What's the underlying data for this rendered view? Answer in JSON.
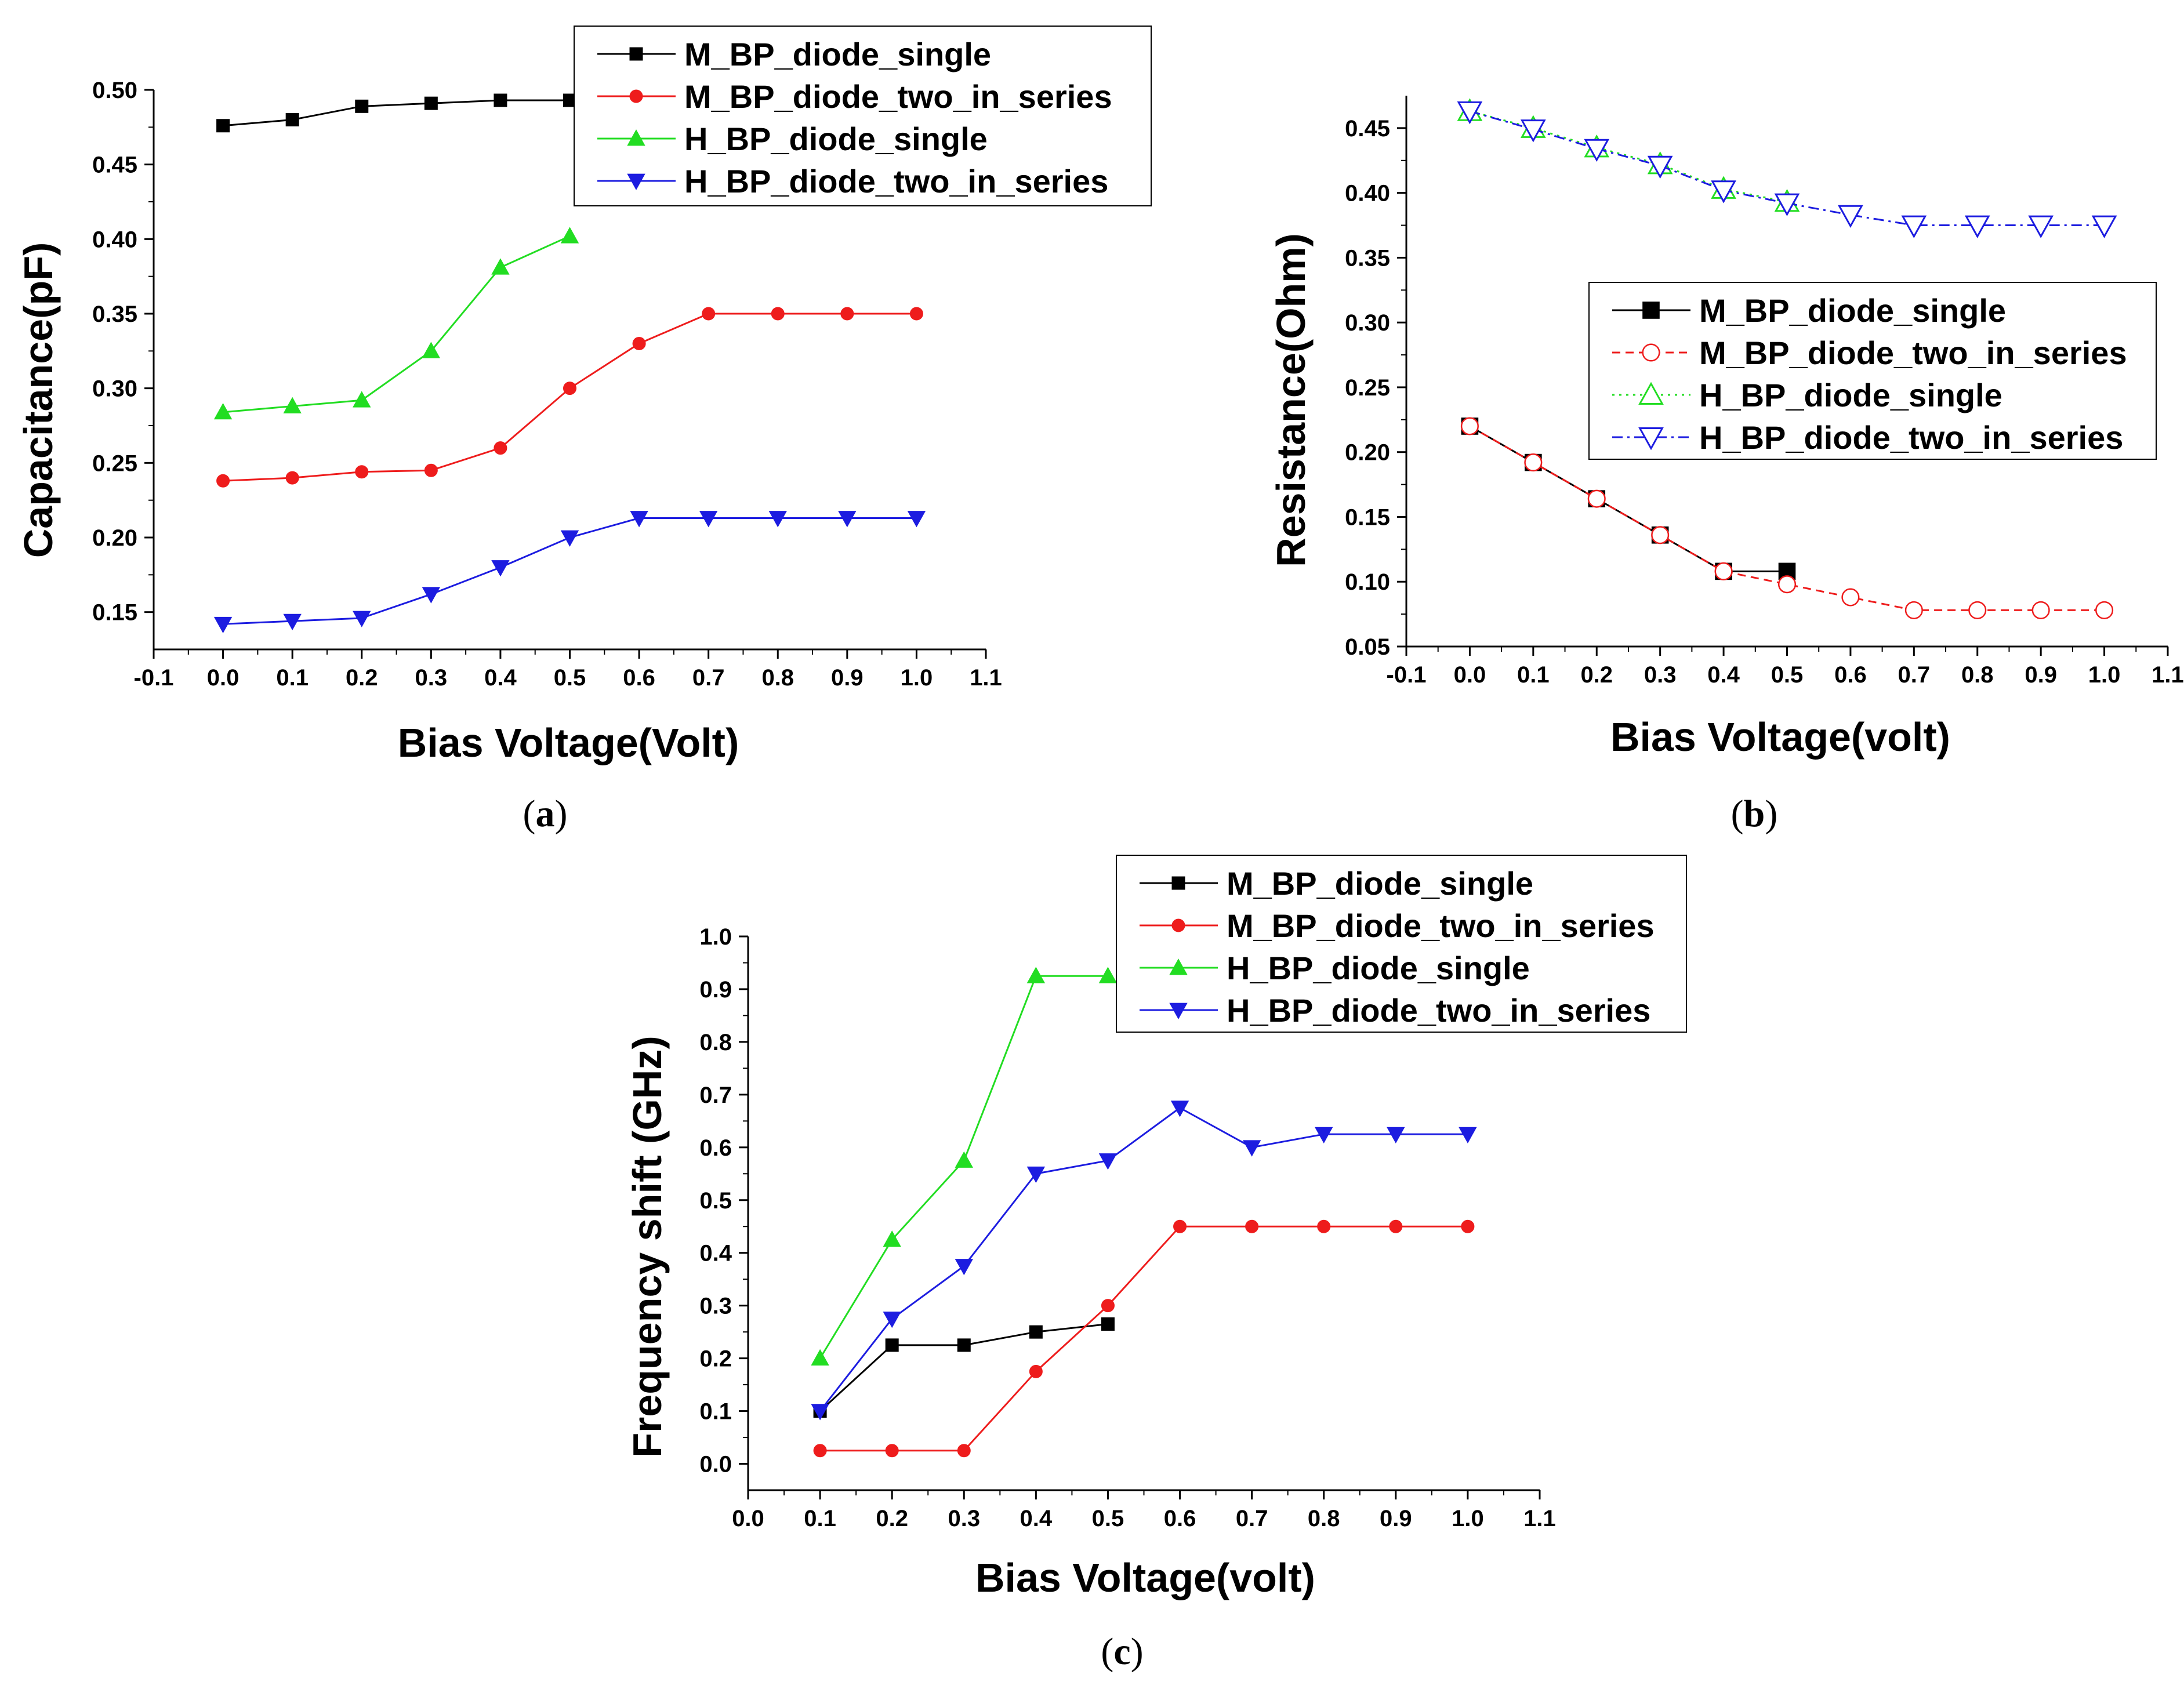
{
  "chart_data": [
    {
      "id": "a",
      "type": "line",
      "panel_label": "(a)",
      "panel_letter": "a",
      "xlabel": "Bias Voltage(Volt)",
      "ylabel": "Capacitance(pF)",
      "xlim": [
        -0.1,
        1.1
      ],
      "ylim": [
        0.125,
        0.5
      ],
      "xticks": [
        -0.1,
        0.0,
        0.1,
        0.2,
        0.3,
        0.4,
        0.5,
        0.6,
        0.7,
        0.8,
        0.9,
        1.0,
        1.1
      ],
      "xtick_labels": [
        "-0.1",
        "0.0",
        "0.1",
        "0.2",
        "0.3",
        "0.4",
        "0.5",
        "0.6",
        "0.7",
        "0.8",
        "0.9",
        "1.0",
        "1.1"
      ],
      "yticks": [
        0.15,
        0.2,
        0.25,
        0.3,
        0.35,
        0.4,
        0.45,
        0.5
      ],
      "ytick_labels": [
        "0.15",
        "0.20",
        "0.25",
        "0.30",
        "0.35",
        "0.40",
        "0.45",
        "0.50"
      ],
      "legend_position": "top-right",
      "series": [
        {
          "name": "M_BP_diode_single",
          "color": "#000000",
          "marker": "square",
          "dash": "solid",
          "x": [
            0.0,
            0.1,
            0.2,
            0.3,
            0.4,
            0.5
          ],
          "y": [
            0.476,
            0.48,
            0.489,
            0.491,
            0.493,
            0.493
          ]
        },
        {
          "name": "M_BP_diode_two_in_series",
          "color": "#ee1c1c",
          "marker": "circle",
          "dash": "solid",
          "x": [
            0.0,
            0.1,
            0.2,
            0.3,
            0.4,
            0.5,
            0.6,
            0.7,
            0.8,
            0.9,
            1.0
          ],
          "y": [
            0.238,
            0.24,
            0.244,
            0.245,
            0.26,
            0.3,
            0.33,
            0.35,
            0.35,
            0.35,
            0.35
          ]
        },
        {
          "name": "H_BP_diode_single",
          "color": "#22dd22",
          "marker": "triangle-up",
          "dash": "solid",
          "x": [
            0.0,
            0.1,
            0.2,
            0.3,
            0.4,
            0.5
          ],
          "y": [
            0.284,
            0.288,
            0.292,
            0.325,
            0.381,
            0.402
          ]
        },
        {
          "name": "H_BP_diode_two_in_series",
          "color": "#1c1ce0",
          "marker": "triangle-down",
          "dash": "solid",
          "x": [
            0.0,
            0.1,
            0.2,
            0.3,
            0.4,
            0.5,
            0.6,
            0.7,
            0.8,
            0.9,
            1.0
          ],
          "y": [
            0.142,
            0.144,
            0.146,
            0.162,
            0.18,
            0.2,
            0.213,
            0.213,
            0.213,
            0.213,
            0.213
          ]
        }
      ]
    },
    {
      "id": "b",
      "type": "line",
      "panel_label": "(b)",
      "panel_letter": "b",
      "xlabel": "Bias Voltage(volt)",
      "ylabel": "Resistance(Ohm)",
      "xlim": [
        -0.1,
        1.1
      ],
      "ylim": [
        0.05,
        0.475
      ],
      "xticks": [
        -0.1,
        0.0,
        0.1,
        0.2,
        0.3,
        0.4,
        0.5,
        0.6,
        0.7,
        0.8,
        0.9,
        1.0,
        1.1
      ],
      "xtick_labels": [
        "-0.1",
        "0.0",
        "0.1",
        "0.2",
        "0.3",
        "0.4",
        "0.5",
        "0.6",
        "0.7",
        "0.8",
        "0.9",
        "1.0",
        "1.1"
      ],
      "yticks": [
        0.05,
        0.1,
        0.15,
        0.2,
        0.25,
        0.3,
        0.35,
        0.4,
        0.45
      ],
      "ytick_labels": [
        "0.05",
        "0.10",
        "0.15",
        "0.20",
        "0.25",
        "0.30",
        "0.35",
        "0.40",
        "0.45"
      ],
      "legend_position": "center-right",
      "series": [
        {
          "name": "M_BP_diode_single",
          "color": "#000000",
          "marker": "square",
          "dash": "solid",
          "x": [
            0.0,
            0.1,
            0.2,
            0.3,
            0.4,
            0.5
          ],
          "y": [
            0.22,
            0.192,
            0.164,
            0.136,
            0.108,
            0.108
          ]
        },
        {
          "name": "M_BP_diode_two_in_series",
          "color": "#ee1c1c",
          "marker": "circle-open",
          "dash": "dashed",
          "x": [
            0.0,
            0.1,
            0.2,
            0.3,
            0.4,
            0.5,
            0.6,
            0.7,
            0.8,
            0.9,
            1.0
          ],
          "y": [
            0.22,
            0.192,
            0.164,
            0.136,
            0.108,
            0.098,
            0.088,
            0.078,
            0.078,
            0.078,
            0.078
          ]
        },
        {
          "name": "H_BP_diode_single",
          "color": "#22dd22",
          "marker": "triangle-up-open",
          "dash": "dotted",
          "x": [
            0.0,
            0.1,
            0.2,
            0.3,
            0.4,
            0.5
          ],
          "y": [
            0.463,
            0.45,
            0.435,
            0.422,
            0.403,
            0.393
          ]
        },
        {
          "name": "H_BP_diode_two_in_series",
          "color": "#1c1ce0",
          "marker": "triangle-down-open",
          "dash": "dashdot",
          "x": [
            0.0,
            0.1,
            0.2,
            0.3,
            0.4,
            0.5,
            0.6,
            0.7,
            0.8,
            0.9,
            1.0
          ],
          "y": [
            0.463,
            0.449,
            0.434,
            0.421,
            0.402,
            0.392,
            0.383,
            0.375,
            0.375,
            0.375,
            0.375
          ]
        }
      ]
    },
    {
      "id": "c",
      "type": "line",
      "panel_label": "(c)",
      "panel_letter": "c",
      "xlabel": "Bias Voltage(volt)",
      "ylabel": "Frequency shift (GHz)",
      "xlim": [
        0.0,
        1.1
      ],
      "ylim": [
        -0.05,
        1.0
      ],
      "xticks": [
        0.0,
        0.1,
        0.2,
        0.3,
        0.4,
        0.5,
        0.6,
        0.7,
        0.8,
        0.9,
        1.0,
        1.1
      ],
      "xtick_labels": [
        "0.0",
        "0.1",
        "0.2",
        "0.3",
        "0.4",
        "0.5",
        "0.6",
        "0.7",
        "0.8",
        "0.9",
        "1.0",
        "1.1"
      ],
      "yticks": [
        0.0,
        0.1,
        0.2,
        0.3,
        0.4,
        0.5,
        0.6,
        0.7,
        0.8,
        0.9,
        1.0
      ],
      "ytick_labels": [
        "0.0",
        "0.1",
        "0.2",
        "0.3",
        "0.4",
        "0.5",
        "0.6",
        "0.7",
        "0.8",
        "0.9",
        "1.0"
      ],
      "legend_position": "top-right",
      "series": [
        {
          "name": "M_BP_diode_single",
          "color": "#000000",
          "marker": "square",
          "dash": "solid",
          "x": [
            0.1,
            0.2,
            0.3,
            0.4,
            0.5
          ],
          "y": [
            0.1,
            0.225,
            0.225,
            0.25,
            0.265
          ]
        },
        {
          "name": "M_BP_diode_two_in_series",
          "color": "#ee1c1c",
          "marker": "circle",
          "dash": "solid",
          "x": [
            0.1,
            0.2,
            0.3,
            0.4,
            0.5,
            0.6,
            0.7,
            0.8,
            0.9,
            1.0
          ],
          "y": [
            0.025,
            0.025,
            0.025,
            0.175,
            0.3,
            0.45,
            0.45,
            0.45,
            0.45,
            0.45
          ]
        },
        {
          "name": "H_BP_diode_single",
          "color": "#22dd22",
          "marker": "triangle-up",
          "dash": "solid",
          "x": [
            0.1,
            0.2,
            0.3,
            0.4,
            0.5
          ],
          "y": [
            0.2,
            0.425,
            0.575,
            0.925,
            0.925
          ]
        },
        {
          "name": "H_BP_diode_two_in_series",
          "color": "#1c1ce0",
          "marker": "triangle-down",
          "dash": "solid",
          "x": [
            0.1,
            0.2,
            0.3,
            0.4,
            0.5,
            0.6,
            0.7,
            0.8,
            0.9,
            1.0
          ],
          "y": [
            0.1,
            0.275,
            0.375,
            0.55,
            0.575,
            0.675,
            0.6,
            0.625,
            0.625,
            0.625
          ]
        }
      ]
    }
  ]
}
